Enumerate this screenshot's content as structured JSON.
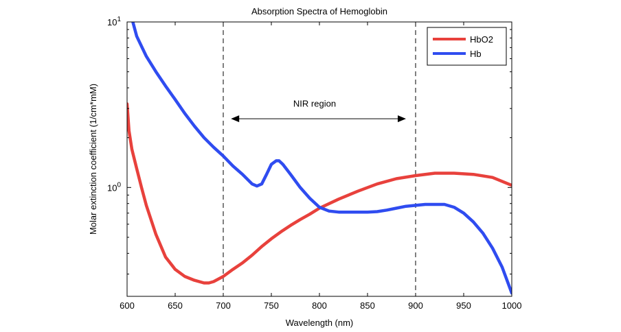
{
  "chart_data": {
    "type": "line",
    "title": "Absorption Spectra of Hemoglobin",
    "xlabel": "Wavelength (nm)",
    "ylabel": "Molar extinction coefficient (1/cm*mM)",
    "xlim": [
      600,
      1000
    ],
    "ylim": [
      0.22,
      10
    ],
    "yscale": "log",
    "x_ticks": [
      600,
      650,
      700,
      750,
      800,
      850,
      900,
      950,
      1000
    ],
    "y_ticks": [
      {
        "value": 1,
        "base": "10",
        "exp": "0"
      },
      {
        "value": 10,
        "base": "10",
        "exp": "1"
      }
    ],
    "grid": false,
    "legend_position": "top-right",
    "series": [
      {
        "name": "HbO2",
        "color": "#e8413c",
        "x": [
          600,
          602,
          605,
          610,
          615,
          620,
          630,
          640,
          650,
          660,
          670,
          680,
          685,
          690,
          700,
          710,
          720,
          730,
          740,
          750,
          760,
          770,
          780,
          790,
          800,
          820,
          840,
          860,
          880,
          900,
          920,
          940,
          960,
          980,
          1000
        ],
        "y": [
          3.2,
          2.2,
          1.7,
          1.3,
          1.0,
          0.78,
          0.52,
          0.38,
          0.32,
          0.29,
          0.275,
          0.265,
          0.265,
          0.27,
          0.29,
          0.32,
          0.35,
          0.39,
          0.44,
          0.49,
          0.54,
          0.59,
          0.64,
          0.69,
          0.75,
          0.85,
          0.95,
          1.05,
          1.13,
          1.18,
          1.22,
          1.22,
          1.2,
          1.15,
          1.03
        ]
      },
      {
        "name": "Hb",
        "color": "#2f4cf0",
        "x": [
          600,
          605,
          610,
          620,
          630,
          640,
          650,
          660,
          670,
          680,
          690,
          700,
          710,
          720,
          730,
          735,
          740,
          745,
          750,
          755,
          758,
          762,
          770,
          780,
          790,
          800,
          810,
          820,
          830,
          840,
          850,
          860,
          870,
          880,
          890,
          900,
          910,
          920,
          930,
          940,
          950,
          960,
          970,
          980,
          990,
          1000
        ],
        "y": [
          13,
          10.5,
          8.2,
          6.2,
          5.0,
          4.1,
          3.4,
          2.8,
          2.35,
          2.0,
          1.75,
          1.55,
          1.35,
          1.2,
          1.05,
          1.02,
          1.05,
          1.2,
          1.38,
          1.45,
          1.45,
          1.38,
          1.2,
          1.0,
          0.86,
          0.76,
          0.72,
          0.71,
          0.71,
          0.71,
          0.71,
          0.715,
          0.73,
          0.75,
          0.77,
          0.78,
          0.79,
          0.79,
          0.79,
          0.76,
          0.7,
          0.62,
          0.53,
          0.43,
          0.33,
          0.23
        ]
      }
    ],
    "annotations": [
      {
        "text": "NIR region",
        "x": 795,
        "y": 3.2
      },
      {
        "type": "vline",
        "x": 700
      },
      {
        "type": "vline",
        "x": 900
      },
      {
        "type": "double-arrow",
        "x_start": 708,
        "x_end": 890,
        "y": 2.6
      }
    ]
  }
}
